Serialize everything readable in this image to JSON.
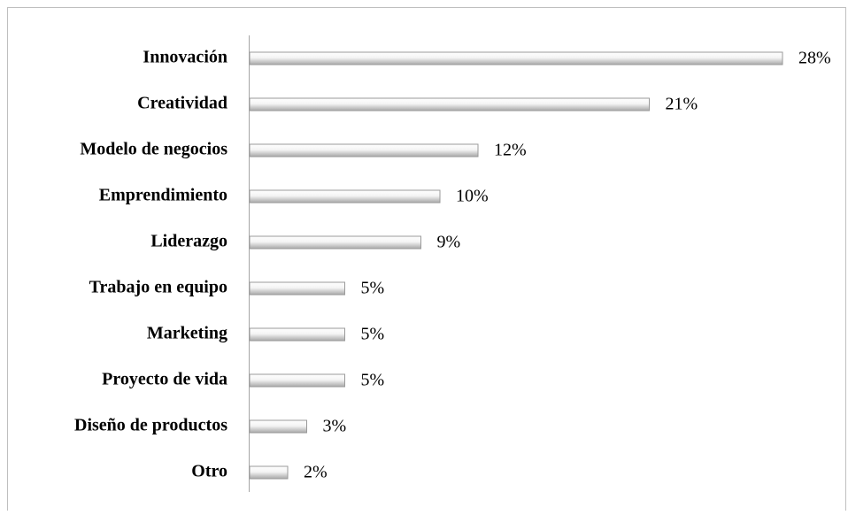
{
  "chart_data": {
    "type": "bar",
    "orientation": "horizontal",
    "categories": [
      "Innovación",
      "Creatividad",
      "Modelo de negocios",
      "Emprendimiento",
      "Liderazgo",
      "Trabajo en equipo",
      "Marketing",
      "Proyecto de vida",
      "Diseño de productos",
      "Otro"
    ],
    "values": [
      28,
      21,
      12,
      10,
      9,
      5,
      5,
      5,
      3,
      2
    ],
    "value_labels": [
      "28%",
      "21%",
      "12%",
      "10%",
      "9%",
      "5%",
      "5%",
      "5%",
      "3%",
      "2%"
    ],
    "color": "#d9d9d9"
  }
}
